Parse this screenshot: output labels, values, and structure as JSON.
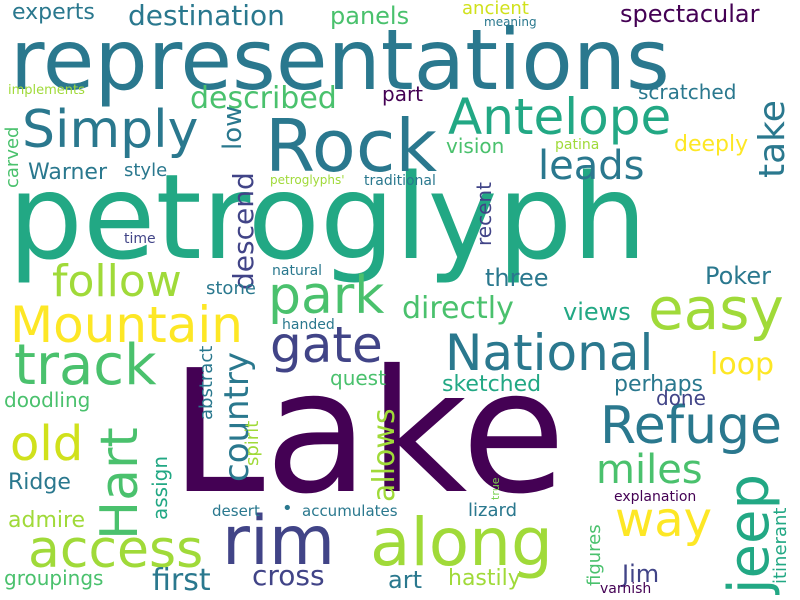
{
  "words": [
    {
      "text": "Lake",
      "color": "#440154"
    },
    {
      "text": "petroglyph",
      "color": "#22a884"
    },
    {
      "text": "representations",
      "color": "#2a788e"
    },
    {
      "text": "Rock",
      "color": "#2a788e"
    },
    {
      "text": "along",
      "color": "#a0da39"
    },
    {
      "text": "Antelope",
      "color": "#22a884"
    },
    {
      "text": "Simply",
      "color": "#2a788e"
    },
    {
      "text": "Mountain",
      "color": "#fde725"
    },
    {
      "text": "National",
      "color": "#2a788e"
    },
    {
      "text": "park",
      "color": "#4ac16d"
    },
    {
      "text": "rim",
      "color": "#414487"
    },
    {
      "text": "access",
      "color": "#a0da39"
    },
    {
      "text": "easy",
      "color": "#a0da39"
    },
    {
      "text": "gate",
      "color": "#414487"
    },
    {
      "text": "track",
      "color": "#4ac16d"
    },
    {
      "text": "Refuge",
      "color": "#2a788e"
    },
    {
      "text": "jeep",
      "color": "#22a884"
    },
    {
      "text": "Hart",
      "color": "#4ac16d"
    },
    {
      "text": "follow",
      "color": "#a0da39"
    },
    {
      "text": "old",
      "color": "#d0e11c"
    },
    {
      "text": "way",
      "color": "#fde725"
    },
    {
      "text": "miles",
      "color": "#4ac16d"
    },
    {
      "text": "leads",
      "color": "#2a788e"
    },
    {
      "text": "take",
      "color": "#2a788e"
    },
    {
      "text": "described",
      "color": "#4ac16d"
    },
    {
      "text": "destination",
      "color": "#2a788e"
    },
    {
      "text": "spectacular",
      "color": "#440154"
    },
    {
      "text": "country",
      "color": "#2a788e"
    },
    {
      "text": "first",
      "color": "#2a788e"
    },
    {
      "text": "cross",
      "color": "#414487"
    },
    {
      "text": "directly",
      "color": "#4ac16d"
    },
    {
      "text": "allows",
      "color": "#a0da39"
    },
    {
      "text": "descend",
      "color": "#414487"
    },
    {
      "text": "loop",
      "color": "#fde725"
    },
    {
      "text": "Poker",
      "color": "#2a788e"
    },
    {
      "text": "panels",
      "color": "#4ac16d"
    },
    {
      "text": "experts",
      "color": "#2a788e"
    },
    {
      "text": "views",
      "color": "#22a884"
    },
    {
      "text": "three",
      "color": "#2a788e"
    },
    {
      "text": "Warner",
      "color": "#2a788e"
    },
    {
      "text": "Ridge",
      "color": "#2a788e"
    },
    {
      "text": "admire",
      "color": "#a0da39"
    },
    {
      "text": "groupings",
      "color": "#4ac16d"
    },
    {
      "text": "art",
      "color": "#2a788e"
    },
    {
      "text": "hastily",
      "color": "#a0da39"
    },
    {
      "text": "Jim",
      "color": "#414487"
    },
    {
      "text": "sketched",
      "color": "#22a884"
    },
    {
      "text": "perhaps",
      "color": "#2a788e"
    },
    {
      "text": "done",
      "color": "#414487"
    },
    {
      "text": "doodling",
      "color": "#4ac16d"
    },
    {
      "text": "low",
      "color": "#2a788e"
    },
    {
      "text": "deeply",
      "color": "#fde725"
    },
    {
      "text": "vision",
      "color": "#4ac16d"
    },
    {
      "text": "recent",
      "color": "#414487"
    },
    {
      "text": "scratched",
      "color": "#2a788e"
    },
    {
      "text": "ancient",
      "color": "#d0e11c"
    },
    {
      "text": "part",
      "color": "#440154"
    },
    {
      "text": "quest",
      "color": "#4ac16d"
    },
    {
      "text": "stone",
      "color": "#2a788e"
    },
    {
      "text": "style",
      "color": "#2a788e"
    },
    {
      "text": "carved",
      "color": "#4ac16d"
    },
    {
      "text": "assign",
      "color": "#22a884"
    },
    {
      "text": "abstract",
      "color": "#2a788e"
    },
    {
      "text": "spirit",
      "color": "#a0da39"
    },
    {
      "text": "lizard",
      "color": "#2a788e"
    },
    {
      "text": "figures",
      "color": "#4ac16d"
    },
    {
      "text": "itinerant",
      "color": "#22a884"
    },
    {
      "text": "accumulates",
      "color": "#2a788e"
    },
    {
      "text": "desert",
      "color": "#2a788e"
    },
    {
      "text": "explanation",
      "color": "#440154"
    },
    {
      "text": "varnish",
      "color": "#440154"
    },
    {
      "text": "patina",
      "color": "#a0da39"
    },
    {
      "text": "traditional",
      "color": "#2a788e"
    },
    {
      "text": "natural",
      "color": "#2a788e"
    },
    {
      "text": "handed",
      "color": "#2a788e"
    },
    {
      "text": "time",
      "color": "#414487"
    },
    {
      "text": "implements",
      "color": "#a0da39"
    },
    {
      "text": "petroglyphs'",
      "color": "#a0da39"
    },
    {
      "text": "meaning",
      "color": "#2a788e"
    },
    {
      "text": "true",
      "color": "#7ad151"
    },
    {
      "text": "•",
      "color": "#2a788e"
    }
  ]
}
